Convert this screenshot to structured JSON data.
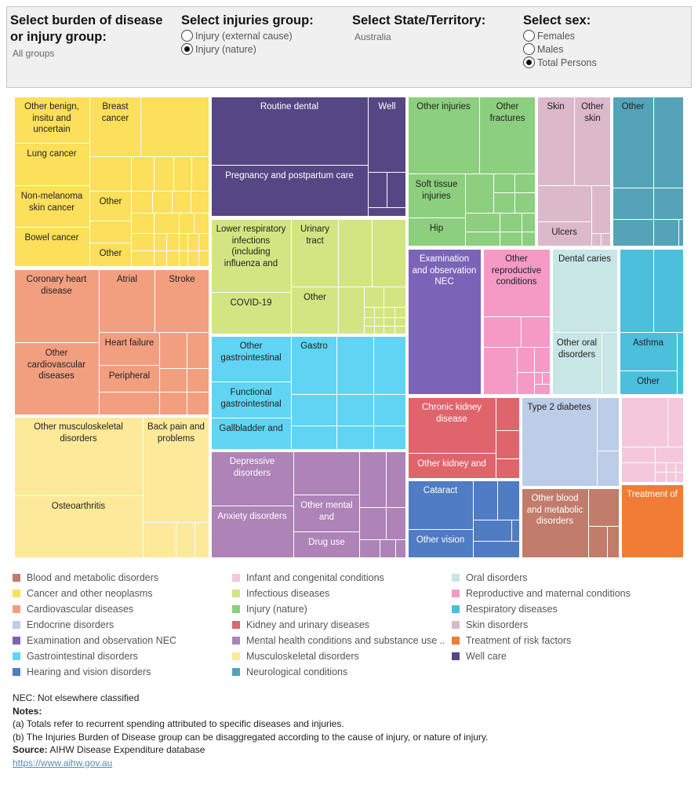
{
  "filters": {
    "burden": {
      "title": "Select burden of disease or injury group:",
      "value": "All groups"
    },
    "injuries": {
      "title": "Select injuries group:",
      "options": [
        {
          "label": "Injury (external cause)",
          "checked": false
        },
        {
          "label": "Injury (nature)",
          "checked": true
        }
      ]
    },
    "state": {
      "title": "Select State/Territory:",
      "value": "Australia"
    },
    "sex": {
      "title": "Select sex:",
      "options": [
        {
          "label": "Females",
          "checked": false
        },
        {
          "label": "Males",
          "checked": false
        },
        {
          "label": "Total Persons",
          "checked": true
        }
      ]
    }
  },
  "legend": [
    {
      "label": "Blood and metabolic disorders",
      "color": "#c17c6b"
    },
    {
      "label": "Cancer and other neoplasms",
      "color": "#fcdf5a"
    },
    {
      "label": "Cardiovascular diseases",
      "color": "#f29f80"
    },
    {
      "label": "Endocrine disorders",
      "color": "#bccde8"
    },
    {
      "label": "Examination and observation NEC",
      "color": "#7b64b8"
    },
    {
      "label": "Gastrointestinal disorders",
      "color": "#61d4f3"
    },
    {
      "label": "Hearing and vision disorders",
      "color": "#4f7cc2"
    },
    {
      "label": "Infant and congenital conditions",
      "color": "#f5c7dc"
    },
    {
      "label": "Infectious diseases",
      "color": "#d3e582"
    },
    {
      "label": "Injury (nature)",
      "color": "#8ccf7e"
    },
    {
      "label": "Kidney and urinary diseases",
      "color": "#e0646c"
    },
    {
      "label": "Mental health conditions and substance use ..",
      "color": "#ad83b8"
    },
    {
      "label": "Musculoskeletal disorders",
      "color": "#fce99a"
    },
    {
      "label": "Neurological conditions",
      "color": "#55a3b8"
    },
    {
      "label": "Oral disorders",
      "color": "#c7e6e5"
    },
    {
      "label": "Reproductive and maternal conditions",
      "color": "#f49ac5"
    },
    {
      "label": "Respiratory diseases",
      "color": "#4cbfdc"
    },
    {
      "label": "Skin disorders",
      "color": "#dbb9ca"
    },
    {
      "label": "Treatment of risk factors",
      "color": "#f07c35"
    },
    {
      "label": "Well care",
      "color": "#574684"
    }
  ],
  "treemap_labels": {
    "cancer": {
      "other_benign": "Other benign, insitu and uncertain",
      "breast": "Breast cancer",
      "lung": "Lung cancer",
      "non_melanoma": "Non-melanoma skin cancer",
      "other1": "Other",
      "bowel": "Bowel cancer",
      "other2": "Other"
    },
    "wellcare": {
      "routine_dental": "Routine dental",
      "well": "Well",
      "pregnancy": "Pregnancy and postpartum care"
    },
    "injury": {
      "other_injuries": "Other injuries",
      "other_fractures": "Other fractures",
      "soft_tissue": "Soft tissue injuries",
      "hip": "Hip"
    },
    "skin": {
      "skin": "Skin",
      "other_skin": "Other skin",
      "ulcers": "Ulcers"
    },
    "neuro": {
      "other": "Other"
    },
    "cardio": {
      "coronary": "Coronary heart disease",
      "atrial": "Atrial",
      "stroke": "Stroke",
      "other_cardio": "Other cardiovascular diseases",
      "heart_failure": "Heart failure",
      "peripheral": "Peripheral"
    },
    "infectious": {
      "lower_resp": "Lower respiratory infections (including influenza and",
      "urinary": "Urinary tract",
      "covid": "COVID-19",
      "other": "Other"
    },
    "exam": {
      "exam": "Examination and observation NEC"
    },
    "repro": {
      "other_repro": "Other reproductive conditions"
    },
    "oral": {
      "dental_caries": "Dental caries",
      "other_oral": "Other oral disorders"
    },
    "resp": {
      "asthma": "Asthma",
      "other": "Other"
    },
    "gastro": {
      "other_gi": "Other gastrointestinal",
      "gastro": "Gastro",
      "functional": "Functional gastrointestinal",
      "gallbladder": "Gallbladder and"
    },
    "musculo": {
      "other_msk": "Other musculoskeletal disorders",
      "back_pain": "Back pain and problems",
      "osteo": "Osteoarthritis"
    },
    "kidney": {
      "ckd": "Chronic kidney disease",
      "other_kidney": "Other kidney and"
    },
    "endocrine": {
      "t2d": "Type 2 diabetes"
    },
    "mental": {
      "depressive": "Depressive disorders",
      "anxiety": "Anxiety disorders",
      "other_mental": "Other mental and",
      "drug_use": "Drug use"
    },
    "vision": {
      "cataract": "Cataract",
      "other_vision": "Other vision"
    },
    "blood": {
      "other_blood": "Other blood and metabolic disorders"
    },
    "risk": {
      "treatment_of": "Treatment of"
    }
  },
  "notes": {
    "nec": "Not elsewhere classified",
    "nec_label": "NEC:",
    "notes_label": "Notes:",
    "note_a": "(a) Totals refer to recurrent spending attributed to specific diseases and injuries.",
    "note_b": "(b) The Injuries Burden of Disease group can be disaggregated according to the cause of injury, or nature of injury.",
    "source_label": "Source:",
    "source": "AIHW Disease Expenditure database",
    "link": "https://www.aihw.gov.au"
  }
}
